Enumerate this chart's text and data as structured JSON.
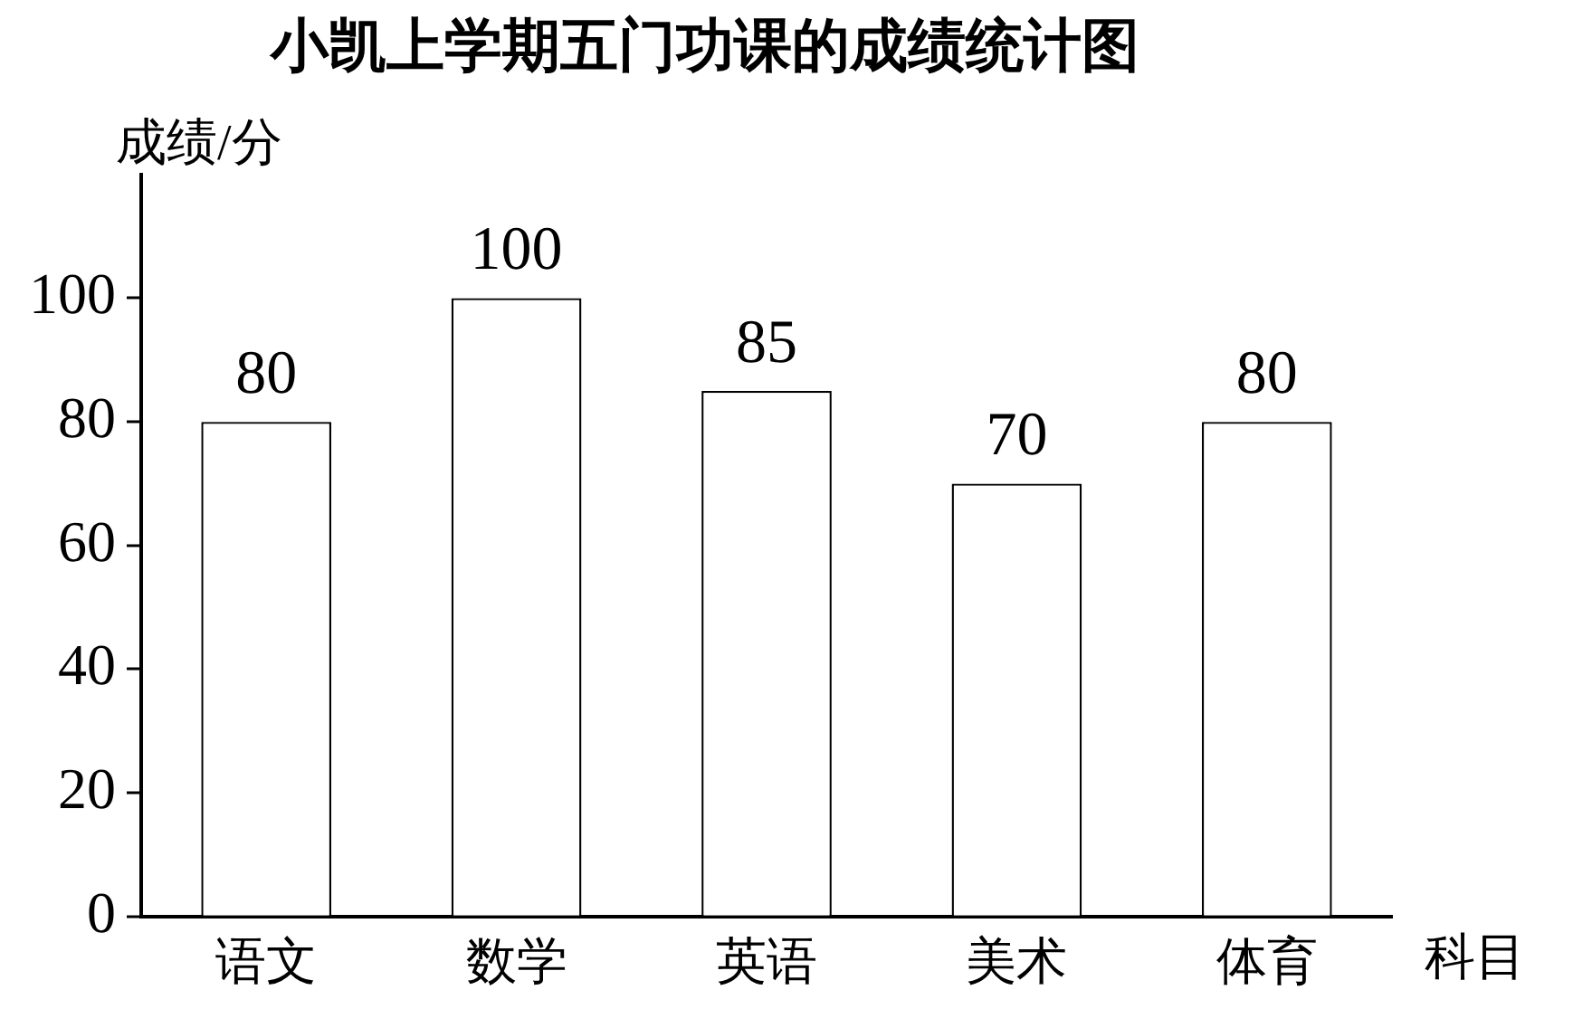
{
  "chart_data": {
    "type": "bar",
    "title": "小凯上学期五门功课的成绩统计图",
    "xlabel": "科目",
    "ylabel": "成绩/分",
    "categories": [
      "语文",
      "数学",
      "英语",
      "美术",
      "体育"
    ],
    "values": [
      80,
      100,
      85,
      70,
      80
    ],
    "color": "#ffffff",
    "ylim": [
      0,
      120
    ],
    "yticks": [
      0,
      20,
      40,
      60,
      80,
      100
    ],
    "data_labels": true,
    "grid": false,
    "legend": false
  }
}
